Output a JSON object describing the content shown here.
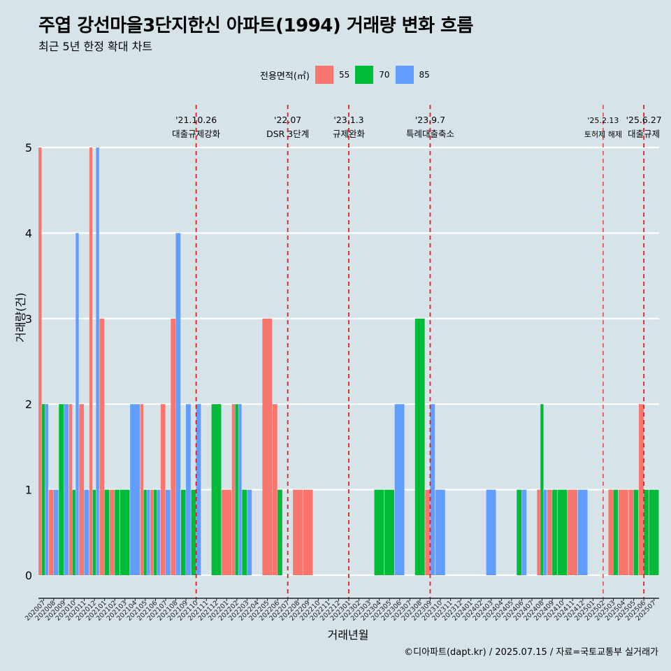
{
  "title": "주엽 강선마을3단지한신 아파트(1994) 거래량 변화 흐름",
  "subtitle": "최근 5년 한정 확대 차트",
  "caption": "©디아파트(dapt.kr) / 2025.07.15 / 자료=국토교통부 실거래가",
  "colors": {
    "background": "#d6e4ea",
    "55": "#f8766d",
    "70": "#00ba38",
    "85": "#619cff",
    "event_line": "#e8191f"
  },
  "chart_data": {
    "type": "bar",
    "title": "주엽 강선마을3단지한신 아파트(1994) 거래량 변화 흐름",
    "subtitle": "최근 5년 한정 확대 차트",
    "xlabel": "거래년월",
    "ylabel": "거래량(건)",
    "ylim": [
      0,
      5
    ],
    "yticks": [
      0,
      1,
      2,
      3,
      4,
      5
    ],
    "grid": true,
    "legend": {
      "title": "전용면적(㎡)",
      "position": "top",
      "entries": [
        "55",
        "70",
        "85"
      ]
    },
    "categories": [
      "202007",
      "202008",
      "202009",
      "202010",
      "202011",
      "202012",
      "202101",
      "202102",
      "202103",
      "202104",
      "202105",
      "202106",
      "202107",
      "202108",
      "202109",
      "202110",
      "202111",
      "202112",
      "202201",
      "202202",
      "202203",
      "202204",
      "202205",
      "202206",
      "202207",
      "202208",
      "202209",
      "202210",
      "202211",
      "202212",
      "202301",
      "202302",
      "202303",
      "202304",
      "202305",
      "202306",
      "202307",
      "202308",
      "202309",
      "202310",
      "202311",
      "202312",
      "202401",
      "202402",
      "202403",
      "202404",
      "202405",
      "202406",
      "202407",
      "202408",
      "202409",
      "202410",
      "202411",
      "202412",
      "202501",
      "202502",
      "202503",
      "202504",
      "202505",
      "202506",
      "202507"
    ],
    "series": [
      {
        "name": "55",
        "values": [
          5,
          1,
          0,
          2,
          2,
          5,
          3,
          1,
          0,
          0,
          2,
          1,
          2,
          3,
          0,
          0,
          0,
          0,
          1,
          2,
          0,
          0,
          3,
          2,
          0,
          1,
          1,
          0,
          0,
          0,
          0,
          0,
          0,
          0,
          0,
          0,
          0,
          0,
          1,
          0,
          0,
          0,
          0,
          0,
          0,
          0,
          0,
          0,
          0,
          1,
          1,
          0,
          1,
          0,
          0,
          0,
          1,
          1,
          1,
          2,
          0
        ]
      },
      {
        "name": "70",
        "values": [
          2,
          0,
          2,
          1,
          0,
          1,
          1,
          1,
          1,
          0,
          1,
          1,
          0,
          0,
          1,
          1,
          0,
          2,
          0,
          2,
          1,
          0,
          0,
          1,
          0,
          0,
          0,
          0,
          0,
          0,
          0,
          0,
          0,
          1,
          1,
          0,
          0,
          3,
          0,
          0,
          0,
          0,
          0,
          0,
          0,
          0,
          0,
          1,
          0,
          2,
          1,
          1,
          0,
          0,
          0,
          0,
          1,
          0,
          1,
          1,
          1
        ]
      },
      {
        "name": "85",
        "values": [
          2,
          1,
          2,
          4,
          1,
          5,
          0,
          0,
          0,
          2,
          1,
          1,
          1,
          4,
          2,
          2,
          0,
          0,
          0,
          2,
          1,
          0,
          0,
          0,
          0,
          0,
          0,
          0,
          0,
          0,
          0,
          0,
          0,
          0,
          0,
          2,
          0,
          0,
          2,
          1,
          0,
          0,
          0,
          0,
          1,
          0,
          0,
          1,
          0,
          1,
          0,
          0,
          0,
          1,
          0,
          0,
          0,
          0,
          0,
          0,
          0
        ]
      }
    ],
    "events": [
      {
        "at": "202110",
        "date": "'21.10.26",
        "label": "대출규제강화"
      },
      {
        "at": "202207",
        "date": "'22.07",
        "label": "DSR 3단계"
      },
      {
        "at": "202301",
        "date": "'23.1.3",
        "label": "규제완화"
      },
      {
        "at": "202309",
        "date": "'23.9.7",
        "label": "특례대출축소"
      },
      {
        "at": "202502",
        "date": "'25.2.13",
        "label": "토허제 해제"
      },
      {
        "at": "202506",
        "date": "'25.6.27",
        "label": "대출규제"
      }
    ]
  }
}
